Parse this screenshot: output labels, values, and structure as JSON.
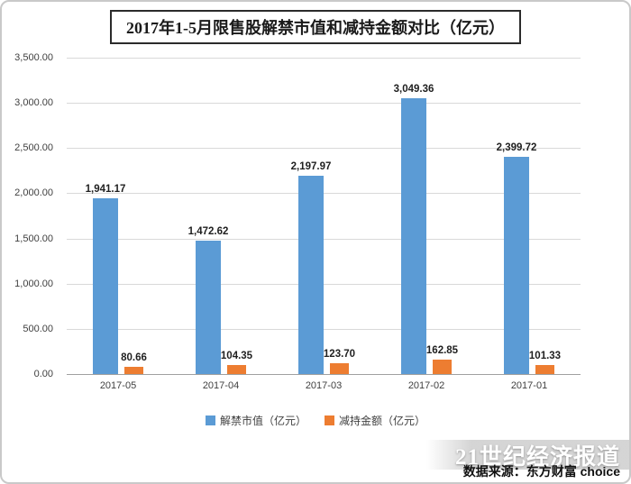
{
  "title": "2017年1-5月限售股解禁市值和减持金额对比（亿元）",
  "watermark": "21世纪经济报道",
  "source": "数据来源：东方财富 choice",
  "chart_data": {
    "type": "bar",
    "title": "2017年1-5月限售股解禁市值和减持金额对比（亿元）",
    "categories": [
      "2017-05",
      "2017-04",
      "2017-03",
      "2017-02",
      "2017-01"
    ],
    "series": [
      {
        "key": "unlock-market-value",
        "name": "解禁市值（亿元）",
        "color": "#5B9BD5",
        "values": [
          1941.17,
          1472.62,
          2197.97,
          3049.36,
          2399.72
        ],
        "labels": [
          "1,941.17",
          "1,472.62",
          "2,197.97",
          "3,049.36",
          "2,399.72"
        ]
      },
      {
        "key": "reduction-amount",
        "name": "减持金额（亿元）",
        "color": "#ED7D31",
        "values": [
          80.66,
          104.35,
          123.7,
          162.85,
          101.33
        ],
        "labels": [
          "80.66",
          "104.35",
          "123.70",
          "162.85",
          "101.33"
        ]
      }
    ],
    "ylim": [
      0,
      3500
    ],
    "ytick_step": 500,
    "ytick_labels": [
      "0.00",
      "500.00",
      "1,000.00",
      "1,500.00",
      "2,000.00",
      "2,500.00",
      "3,000.00",
      "3,500.00"
    ],
    "grid": true,
    "legend_position": "bottom"
  }
}
